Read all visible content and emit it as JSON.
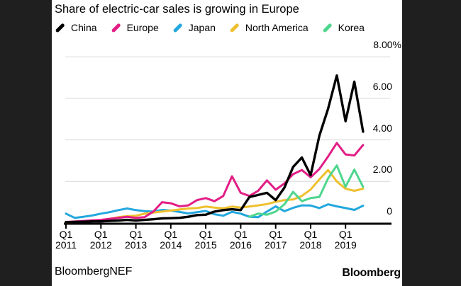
{
  "chart_data": {
    "type": "line",
    "title": "Share of electric-car sales is growing in Europe",
    "unit": "%",
    "grid": "horizontal",
    "legend_position": "top",
    "ylim": [
      0,
      8.4
    ],
    "categories": [
      "Q1 2011",
      "Q2 2011",
      "Q3 2011",
      "Q4 2011",
      "Q1 2012",
      "Q2 2012",
      "Q3 2012",
      "Q4 2012",
      "Q1 2013",
      "Q2 2013",
      "Q3 2013",
      "Q4 2013",
      "Q1 2014",
      "Q2 2014",
      "Q3 2014",
      "Q4 2014",
      "Q1 2015",
      "Q2 2015",
      "Q3 2015",
      "Q4 2015",
      "Q1 2016",
      "Q2 2016",
      "Q3 2016",
      "Q4 2016",
      "Q1 2017",
      "Q2 2017",
      "Q3 2017",
      "Q4 2017",
      "Q1 2018",
      "Q2 2018",
      "Q3 2018",
      "Q4 2018",
      "Q1 2019",
      "Q2 2019",
      "Q3 2019"
    ],
    "x_ticks": [
      {
        "quarter": "Q1",
        "year": "2011"
      },
      {
        "quarter": "Q1",
        "year": "2012"
      },
      {
        "quarter": "Q1",
        "year": "2013"
      },
      {
        "quarter": "Q1",
        "year": "2014"
      },
      {
        "quarter": "Q1",
        "year": "2015"
      },
      {
        "quarter": "Q1",
        "year": "2016"
      },
      {
        "quarter": "Q1",
        "year": "2017"
      },
      {
        "quarter": "Q1",
        "year": "2018"
      },
      {
        "quarter": "Q1",
        "year": "2019"
      }
    ],
    "y_ticks": [
      {
        "label": "8.00%",
        "value": 8
      },
      {
        "label": "6.00",
        "value": 6
      },
      {
        "label": "4.00",
        "value": 4
      },
      {
        "label": "2.00",
        "value": 2
      },
      {
        "label": "0",
        "value": 0
      }
    ],
    "series": [
      {
        "name": "China",
        "color": "#000000",
        "values": [
          0.04,
          0.05,
          0.06,
          0.08,
          0.08,
          0.1,
          0.12,
          0.15,
          0.12,
          0.15,
          0.18,
          0.22,
          0.23,
          0.25,
          0.3,
          0.38,
          0.4,
          0.55,
          0.62,
          0.66,
          0.62,
          1.25,
          1.35,
          1.45,
          1.1,
          1.7,
          2.7,
          3.15,
          2.3,
          4.2,
          5.5,
          7.1,
          4.9,
          6.8,
          4.4
        ]
      },
      {
        "name": "Europe",
        "color": "#e21d85",
        "values": [
          0.05,
          0.07,
          0.1,
          0.13,
          0.15,
          0.2,
          0.25,
          0.3,
          0.25,
          0.28,
          0.55,
          1.0,
          0.95,
          0.8,
          0.85,
          1.1,
          1.2,
          1.05,
          1.3,
          2.25,
          1.45,
          1.3,
          1.55,
          2.05,
          1.6,
          1.9,
          2.35,
          2.55,
          2.2,
          2.6,
          3.2,
          3.85,
          3.3,
          3.25,
          3.75
        ]
      },
      {
        "name": "Japan",
        "color": "#23a7de",
        "values": [
          0.45,
          0.25,
          0.3,
          0.36,
          0.45,
          0.52,
          0.62,
          0.7,
          0.62,
          0.57,
          0.55,
          0.63,
          0.6,
          0.53,
          0.46,
          0.52,
          0.58,
          0.42,
          0.35,
          0.54,
          0.45,
          0.3,
          0.28,
          0.55,
          0.8,
          0.57,
          0.73,
          0.85,
          0.84,
          0.72,
          0.9,
          0.8,
          0.72,
          0.63,
          0.83
        ]
      },
      {
        "name": "North America",
        "color": "#eec02f",
        "values": [
          0.03,
          0.05,
          0.08,
          0.1,
          0.15,
          0.2,
          0.28,
          0.33,
          0.35,
          0.45,
          0.5,
          0.55,
          0.6,
          0.65,
          0.7,
          0.72,
          0.79,
          0.74,
          0.71,
          0.79,
          0.74,
          0.79,
          0.85,
          0.91,
          1.02,
          1.1,
          1.13,
          1.3,
          1.61,
          2.1,
          2.55,
          2.0,
          1.65,
          1.55,
          1.65
        ]
      },
      {
        "name": "Korea",
        "color": "#4ed68e",
        "values": [
          null,
          null,
          null,
          null,
          null,
          null,
          null,
          null,
          null,
          null,
          null,
          null,
          null,
          null,
          null,
          null,
          null,
          null,
          null,
          null,
          null,
          0.3,
          0.45,
          0.4,
          0.55,
          0.9,
          1.5,
          1.05,
          1.2,
          1.25,
          2.15,
          2.77,
          1.74,
          2.57,
          1.74
        ]
      }
    ]
  },
  "colors": {
    "background_dark": "#1f1f1f",
    "panel": "#ffffff",
    "gridline": "#d8d8d8",
    "axis": "#000000"
  },
  "footer": {
    "left": "BloombergNEF",
    "right": "Bloomberg"
  }
}
